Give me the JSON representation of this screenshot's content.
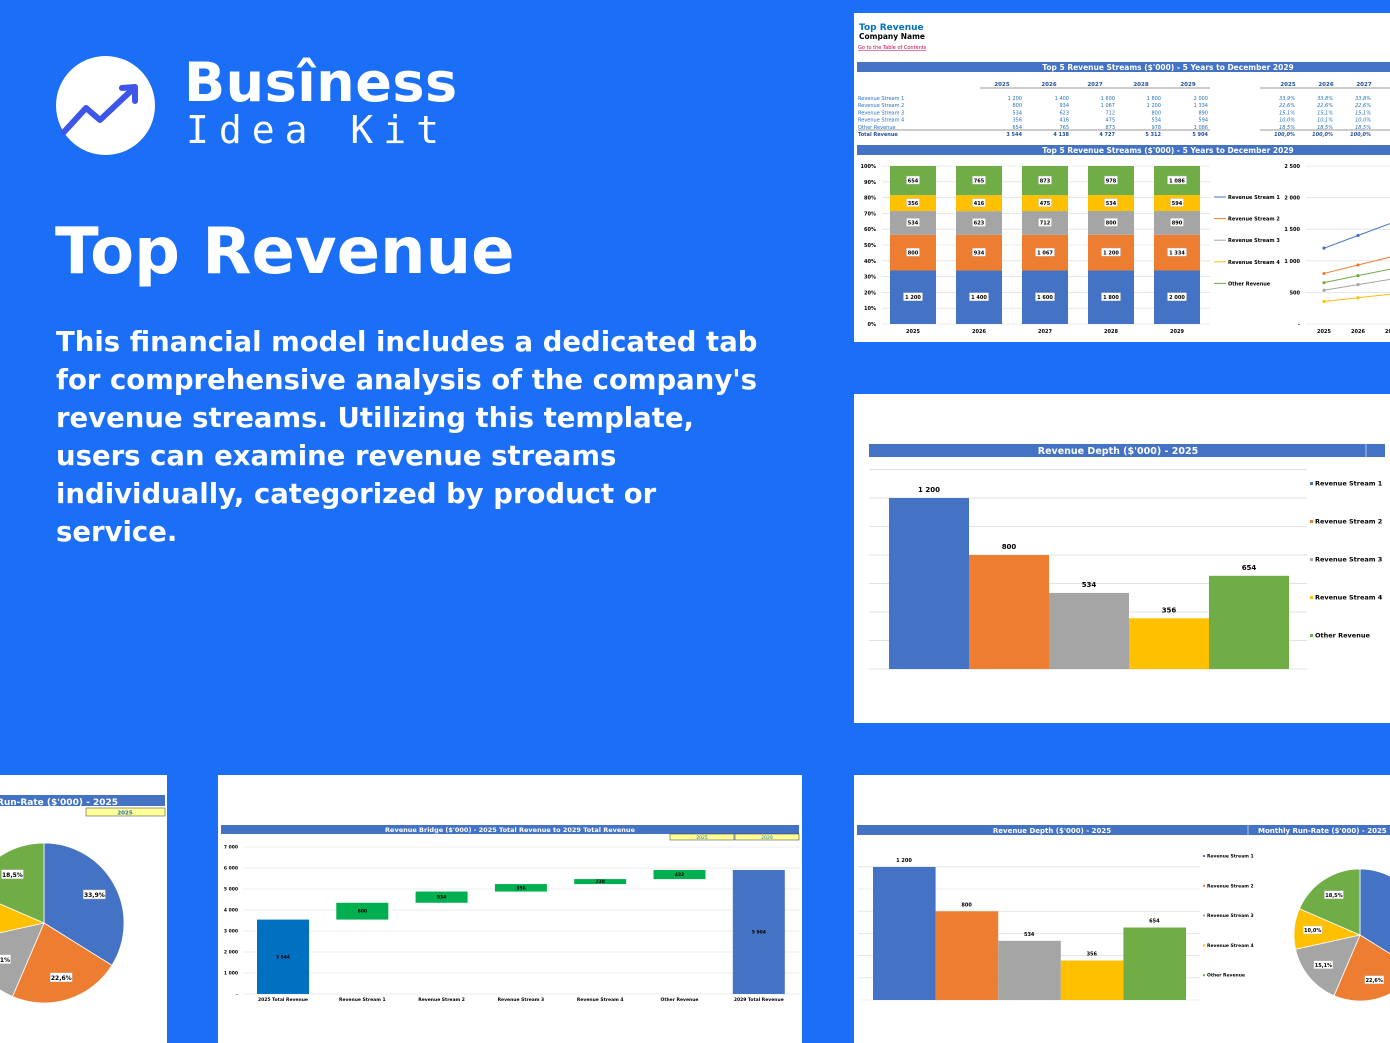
{
  "brand": {
    "line1": "Busîness",
    "line2": "Idea Kit"
  },
  "page_title": "Top Revenue",
  "description": "This financial model includes a dedicated tab for comprehensive analysis of the company's revenue streams. Utilizing this template, users can examine revenue streams individually, categorized by product or service.",
  "sheet": {
    "title": "Top Revenue",
    "company": "Company Name",
    "toc_link": "Go to the Table of Contents",
    "table_title": "Top 5 Revenue Streams ($'000) - 5 Years to December 2029",
    "chart_title": "Top 5 Revenue Streams ($'000) - 5 Years to December 2029",
    "total_label": "Total Revenue",
    "percent_years": [
      "2025",
      "2026",
      "2027"
    ],
    "percent_rows": [
      [
        "33,9%",
        "33,8%",
        "33,8%"
      ],
      [
        "22,6%",
        "22,6%",
        "22,6%"
      ],
      [
        "15,1%",
        "15,1%",
        "15,1%"
      ],
      [
        "10,0%",
        "10,1%",
        "10,0%"
      ],
      [
        "18,5%",
        "18,5%",
        "18,5%"
      ]
    ],
    "percent_total": [
      "100,0%",
      "100,0%",
      "100,0%"
    ],
    "totals": [
      "3 544",
      "4 138",
      "4 727",
      "5 312",
      "5 904"
    ]
  },
  "colors": {
    "background": "#1b6ef6",
    "header_bar": "#4472c4",
    "stream_1": "#4472c4",
    "stream_2": "#ed7d31",
    "stream_3": "#a5a5a5",
    "stream_4": "#ffc000",
    "other": "#70ad47",
    "bridge_increase": "#00b050",
    "bridge_total_start": "#0070c0",
    "year_box": "#ffff99"
  },
  "chart_data": [
    {
      "type": "bar",
      "stacked": "percent",
      "title": "Top 5 Revenue Streams ($'000) - 5 Years to December 2029",
      "categories": [
        "2025",
        "2026",
        "2027",
        "2028",
        "2029"
      ],
      "series": [
        {
          "name": "Revenue Stream 1",
          "values": [
            1200,
            1400,
            1600,
            1800,
            2000
          ]
        },
        {
          "name": "Revenue Stream 2",
          "values": [
            800,
            934,
            1067,
            1200,
            1334
          ]
        },
        {
          "name": "Revenue Stream 3",
          "values": [
            534,
            623,
            712,
            800,
            890
          ]
        },
        {
          "name": "Revenue Stream 4",
          "values": [
            356,
            416,
            475,
            534,
            594
          ]
        },
        {
          "name": "Other Revenue",
          "values": [
            654,
            765,
            873,
            978,
            1086
          ]
        }
      ],
      "yticks": [
        "0%",
        "10%",
        "20%",
        "30%",
        "40%",
        "50%",
        "60%",
        "70%",
        "80%",
        "90%",
        "100%"
      ],
      "legend": "right"
    },
    {
      "type": "line",
      "categories": [
        "2025",
        "2026",
        "2027"
      ],
      "series_ref": "same as stacked chart",
      "ylim": [
        0,
        2500
      ],
      "yticks": [
        "-",
        "500",
        "1 000",
        "1 500",
        "2 000",
        "2 500"
      ]
    },
    {
      "type": "bar",
      "title": "Revenue Depth ($'000) - 2025",
      "categories": [
        "Revenue Stream 1",
        "Revenue Stream 2",
        "Revenue Stream 3",
        "Revenue Stream 4",
        "Other Revenue"
      ],
      "values": [
        1200,
        800,
        534,
        356,
        654
      ],
      "legend": "right"
    },
    {
      "type": "pie",
      "title": "Monthly Run-Rate ($'000) - 2025",
      "year_selector": "2025",
      "categories": [
        "Revenue Stream 1",
        "Revenue Stream 2",
        "Revenue Stream 3",
        "Revenue Stream 4",
        "Other Revenue"
      ],
      "values": [
        33.9,
        22.6,
        15.1,
        10.0,
        18.5
      ],
      "labels": [
        "33,9%",
        "22,6%",
        "15,1%",
        "10,0%",
        "18,5%"
      ]
    },
    {
      "type": "bar",
      "subtype": "waterfall",
      "title": "Revenue Bridge ($'000) - 2025 Total Revenue to 2029 Total Revenue",
      "year_selectors": [
        "2025",
        "2029"
      ],
      "categories": [
        "2025 Total Revenue",
        "Revenue Stream 1",
        "Revenue Stream 2",
        "Revenue Stream 3",
        "Revenue Stream 4",
        "Other Revenue",
        "2029 Total Revenue"
      ],
      "values": [
        3544,
        800,
        534,
        356,
        238,
        432,
        5904
      ],
      "labels": [
        "3 544",
        "800",
        "534",
        "356",
        "238",
        "432",
        "5 904"
      ],
      "ylim": [
        0,
        7000
      ],
      "yticks": [
        "-",
        "1 000",
        "2 000",
        "3 000",
        "4 000",
        "5 000",
        "6 000",
        "7 000"
      ]
    }
  ]
}
